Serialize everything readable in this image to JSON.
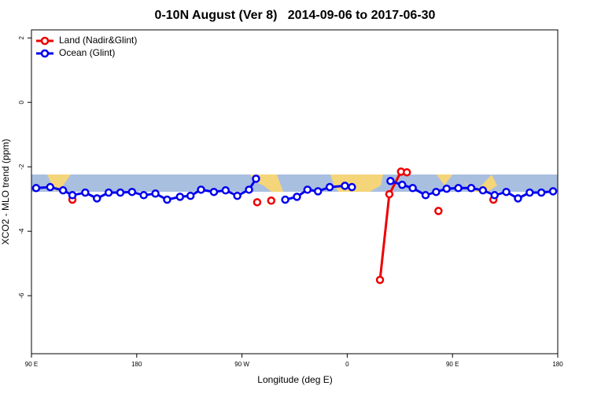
{
  "chart_data": {
    "type": "line",
    "title": "0-10N August (Ver 8)   2014-09-06 to 2017-06-30",
    "x_label": "Longitude (deg E)",
    "y_label": "XCO2 - MLO trend (ppm)",
    "xlim": [
      90,
      540
    ],
    "xticks": [
      {
        "value": 90,
        "label": "90 E"
      },
      180,
      {
        "value": 270,
        "label": "90 W"
      },
      {
        "value": 360,
        "label": "0"
      },
      {
        "value": 450,
        "label": "90 E"
      },
      {
        "value": 540,
        "label": "180"
      }
    ],
    "ylim": [
      -7.8,
      2.25
    ],
    "yticks": [
      -6,
      -4,
      -2,
      0,
      2
    ],
    "legend": "top-left",
    "series": [
      {
        "name": "Land (Nadir&Glint)",
        "color": "#ee0000",
        "x": [
          125,
          null,
          283,
          null,
          295,
          null,
          388,
          396,
          406,
          411,
          null,
          438,
          null,
          485
        ],
        "values": [
          -3.02,
          null,
          -3.1,
          null,
          -3.05,
          null,
          -5.51,
          -2.85,
          -2.15,
          -2.17,
          null,
          -3.37,
          null,
          -3.02
        ]
      },
      {
        "name": "Ocean (Glint)",
        "color": "#0000ee",
        "x": [
          94,
          106,
          117,
          125,
          136,
          146,
          156,
          166,
          176,
          186,
          196,
          206,
          217,
          226,
          235,
          246,
          256,
          266,
          276,
          282,
          null,
          307,
          317,
          326,
          335,
          345,
          358,
          364,
          null,
          397,
          407,
          416,
          427,
          436,
          445,
          455,
          466,
          476,
          486,
          496,
          506,
          516,
          526,
          536
        ],
        "values": [
          -2.66,
          -2.63,
          -2.73,
          -2.88,
          -2.8,
          -2.98,
          -2.8,
          -2.8,
          -2.78,
          -2.88,
          -2.83,
          -3.02,
          -2.93,
          -2.9,
          -2.71,
          -2.78,
          -2.73,
          -2.9,
          -2.71,
          -2.37,
          null,
          -3.02,
          -2.93,
          -2.71,
          -2.76,
          -2.63,
          -2.59,
          -2.63,
          null,
          -2.44,
          -2.56,
          -2.66,
          -2.88,
          -2.78,
          -2.68,
          -2.66,
          -2.66,
          -2.73,
          -2.88,
          -2.78,
          -2.98,
          -2.8,
          -2.8,
          -2.76
        ]
      }
    ]
  }
}
